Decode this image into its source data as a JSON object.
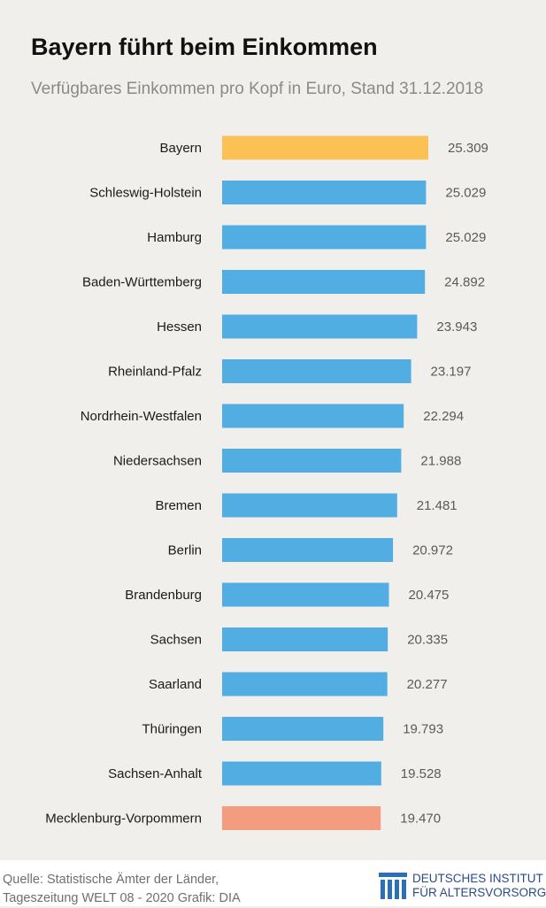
{
  "title": "Bayern führt beim Einkommen",
  "subtitle": "Verfügbares Einkommen pro Kopf in Euro, Stand 31.12.2018",
  "colors": {
    "highlight": "#fbc155",
    "default": "#52ade3",
    "last": "#f39c80",
    "background": "#f1efec"
  },
  "chart_data": {
    "type": "bar",
    "orientation": "horizontal",
    "categories": [
      "Bayern",
      "Schleswig-Holstein",
      "Hamburg",
      "Baden-Württemberg",
      "Hessen",
      "Rheinland-Pfalz",
      "Nordrhein-Westfalen",
      "Niedersachsen",
      "Bremen",
      "Berlin",
      "Brandenburg",
      "Sachsen",
      "Saarland",
      "Thüringen",
      "Sachsen-Anhalt",
      "Mecklenburg-Vorpommern"
    ],
    "values": [
      25309,
      25029,
      25029,
      24892,
      23943,
      23197,
      22294,
      21988,
      21481,
      20972,
      20475,
      20335,
      20277,
      19793,
      19528,
      19470
    ],
    "value_labels": [
      "25.309",
      "25.029",
      "25.029",
      "24.892",
      "23.943",
      "23.197",
      "22.294",
      "21.988",
      "21.481",
      "20.972",
      "20.475",
      "20.335",
      "20.277",
      "19.793",
      "19.528",
      "19.470"
    ],
    "bar_colors": [
      "#fbc155",
      "#52ade3",
      "#52ade3",
      "#52ade3",
      "#52ade3",
      "#52ade3",
      "#52ade3",
      "#52ade3",
      "#52ade3",
      "#52ade3",
      "#52ade3",
      "#52ade3",
      "#52ade3",
      "#52ade3",
      "#52ade3",
      "#f39c80"
    ],
    "grid": false,
    "legend": "none"
  },
  "footer": {
    "source_line1": "Quelle: Statistische Ämter der Länder,",
    "source_line2": "Tageszeitung WELT 08 - 2020  Grafik: DIA",
    "logo_line1": "DEUTSCHES INSTITUT",
    "logo_line2": "FÜR ALTERSVORSORGE",
    "logo_icon": "dia-pillars-icon"
  }
}
